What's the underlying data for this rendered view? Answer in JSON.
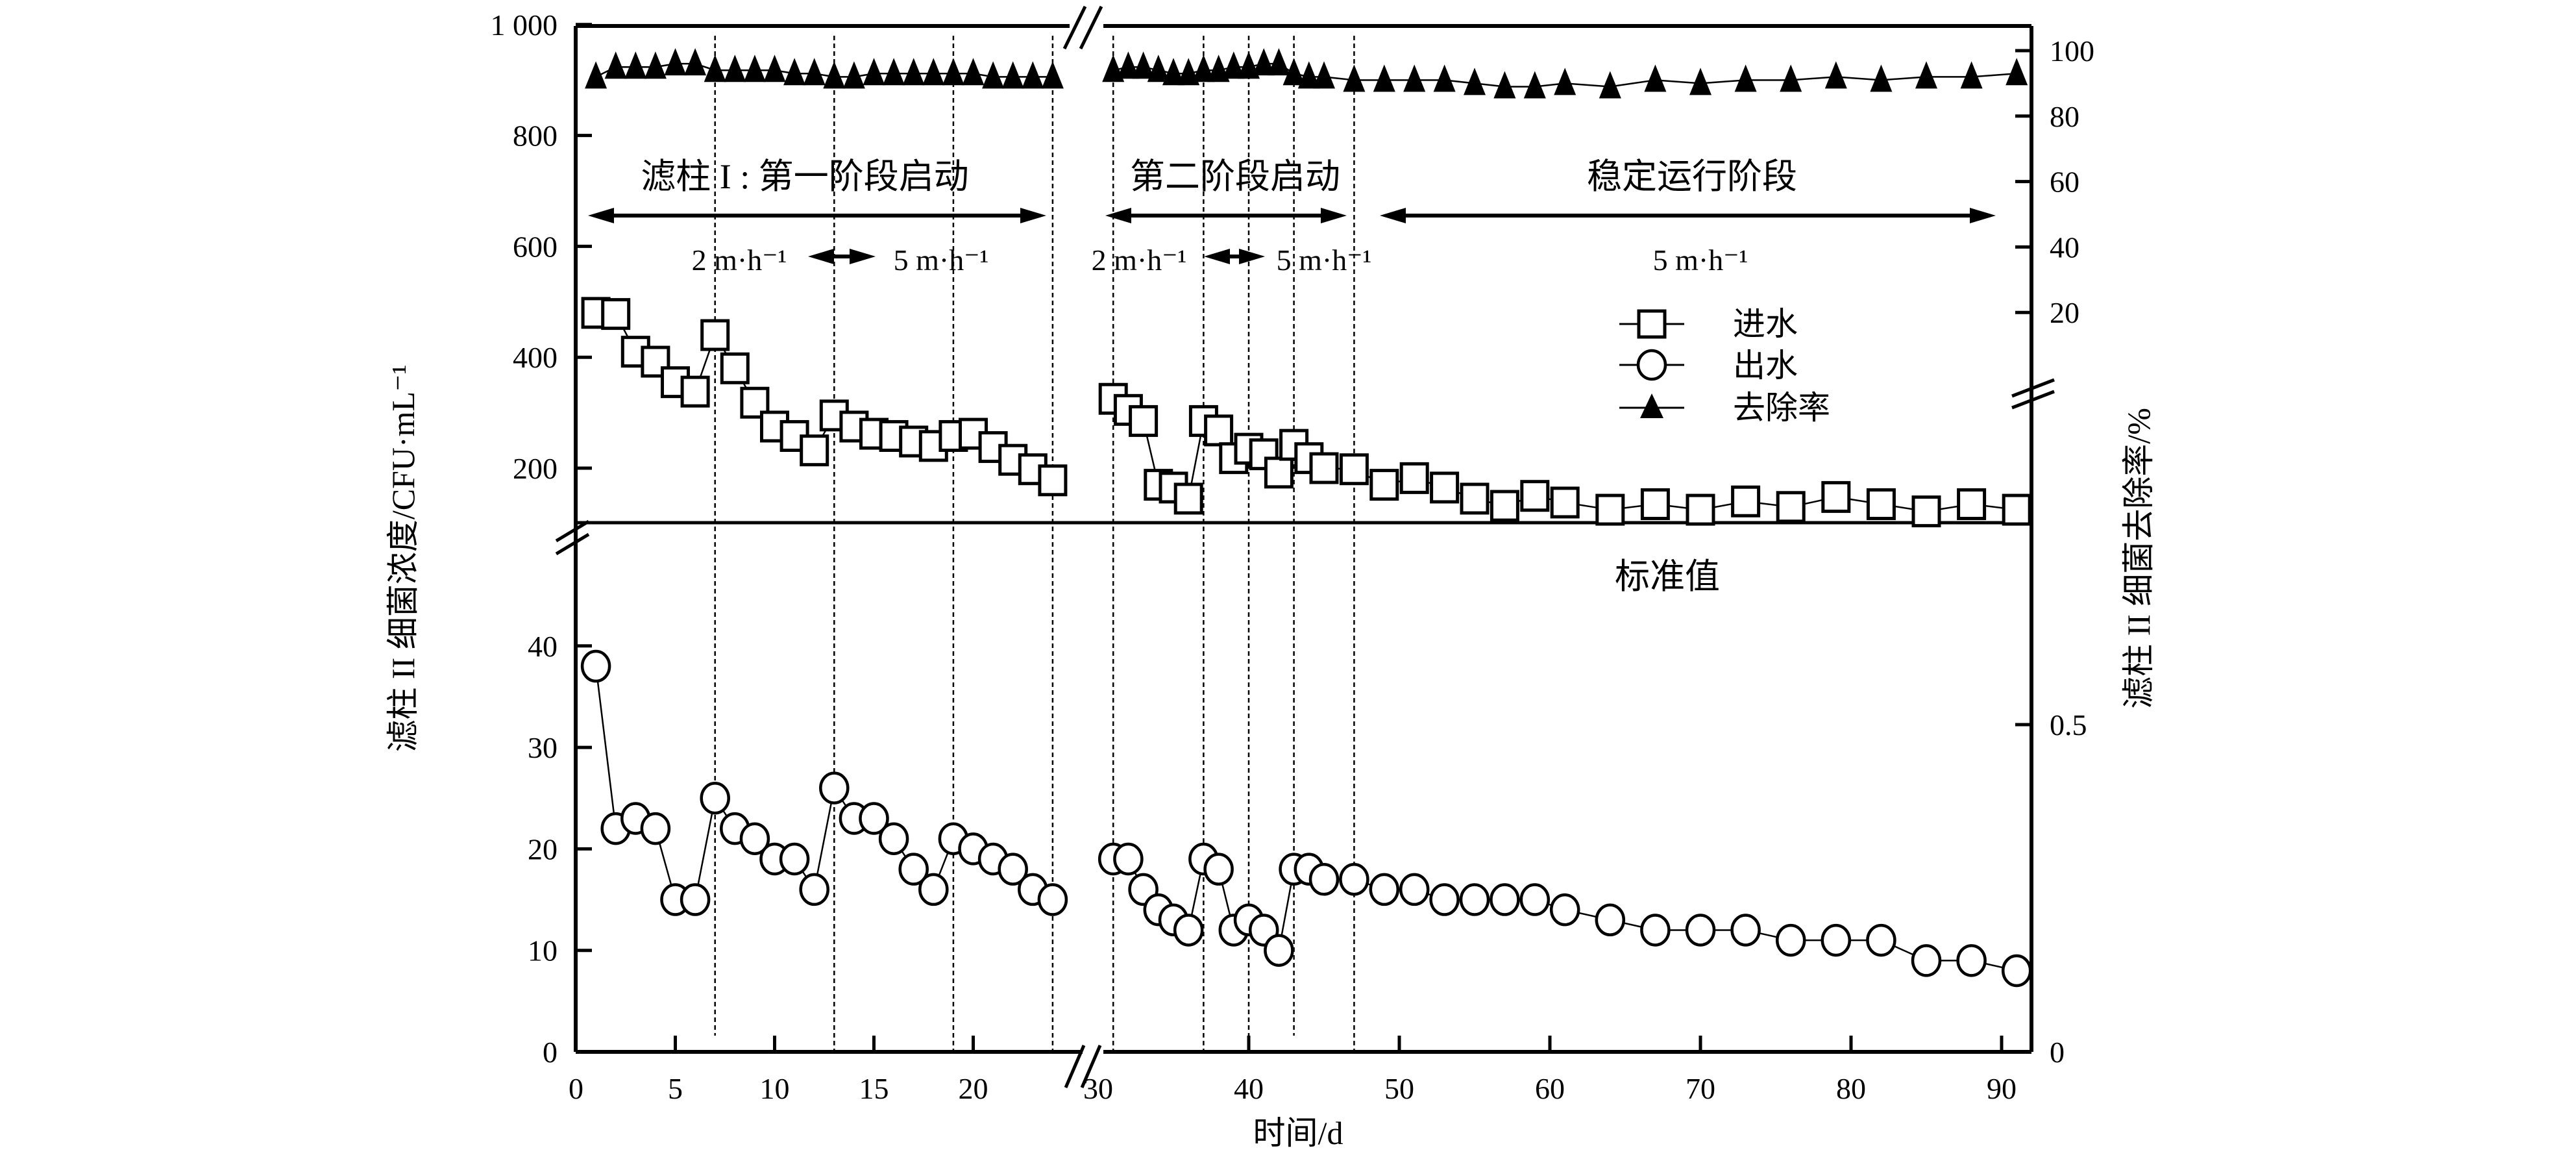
{
  "chart_data": {
    "type": "scatter",
    "xlabel": "时间/d",
    "ylabel_left": "滤柱 II 细菌浓度/CFU·mL⁻¹",
    "ylabel_right": "滤柱 II 细菌去除率/%",
    "x_axis": {
      "broken": true,
      "segments": [
        [
          0,
          26
        ],
        [
          29,
          92
        ]
      ],
      "tick_values": [
        0,
        5,
        10,
        15,
        20,
        30,
        40,
        50,
        60,
        70,
        80,
        90
      ],
      "tick_labels": [
        "0",
        "5",
        "10",
        "15",
        "20",
        "30",
        "40",
        "50",
        "60",
        "70",
        "80",
        "90"
      ]
    },
    "y_left": {
      "broken": true,
      "lower_range": [
        0,
        52
      ],
      "upper_range": [
        102,
        1000
      ],
      "lower_ticks": [
        0,
        10,
        20,
        30,
        40
      ],
      "lower_tick_labels": [
        "0",
        "10",
        "20",
        "30",
        "40"
      ],
      "upper_ticks": [
        200,
        400,
        600,
        800,
        1000
      ],
      "upper_tick_labels": [
        "200",
        "400",
        "600",
        "800",
        "1 000"
      ]
    },
    "y_right": {
      "broken": true,
      "upper_ticks": [
        20,
        40,
        60,
        80,
        100
      ],
      "upper_tick_labels": [
        "20",
        "40",
        "60",
        "80",
        "100"
      ],
      "lower_ticks": [
        0,
        0.5
      ],
      "lower_tick_labels": [
        "0",
        "0.5"
      ]
    },
    "legend": {
      "placement": "center-right",
      "entries": [
        "进水",
        "出水",
        "去除率"
      ]
    },
    "grid": false,
    "x": [
      1,
      2,
      3,
      4,
      5,
      6,
      7,
      8,
      9,
      10,
      11,
      12,
      13,
      14,
      15,
      16,
      17,
      18,
      19,
      20,
      21,
      22,
      23,
      24,
      31,
      32,
      33,
      34,
      35,
      36,
      37,
      38,
      39,
      40,
      41,
      42,
      43,
      44,
      45,
      47,
      49,
      51,
      53,
      55,
      57,
      59,
      61,
      64,
      67,
      70,
      73,
      76,
      79,
      82,
      85,
      88,
      91
    ],
    "series": [
      {
        "name": "进水",
        "marker": "square",
        "axis": "left",
        "values": [
          480,
          478,
          410,
          392,
          355,
          338,
          440,
          380,
          318,
          275,
          258,
          232,
          295,
          275,
          262,
          258,
          248,
          240,
          258,
          262,
          238,
          215,
          198,
          178,
          325,
          305,
          285,
          170,
          165,
          145,
          285,
          268,
          218,
          235,
          225,
          192,
          242,
          218,
          200,
          198,
          170,
          182,
          165,
          145,
          132,
          150,
          138,
          125,
          135,
          125,
          140,
          130,
          148,
          135,
          122,
          135,
          125
        ]
      },
      {
        "name": "出水",
        "marker": "circle",
        "axis": "left",
        "values": [
          38,
          22,
          23,
          22,
          15,
          15,
          25,
          22,
          21,
          19,
          19,
          16,
          26,
          23,
          23,
          21,
          18,
          16,
          21,
          20,
          19,
          18,
          16,
          15,
          19,
          19,
          16,
          14,
          13,
          12,
          19,
          18,
          12,
          13,
          12,
          10,
          18,
          18,
          17,
          17,
          16,
          16,
          15,
          15,
          15,
          15,
          14,
          13,
          12,
          12,
          12,
          11,
          11,
          11,
          9,
          9,
          8
        ]
      },
      {
        "name": "去除率",
        "marker": "triangle",
        "axis": "right",
        "values": [
          92,
          95,
          95,
          95,
          96,
          96,
          94,
          94,
          94,
          94,
          93,
          93,
          92,
          92,
          93,
          93,
          93,
          93,
          93,
          93,
          92,
          92,
          92,
          92,
          94,
          95,
          95,
          94,
          93,
          93,
          94,
          94,
          95,
          95,
          96,
          96,
          93,
          92,
          92,
          91,
          91,
          91,
          91,
          90,
          89,
          89,
          90,
          89,
          91,
          90,
          91,
          91,
          92,
          91,
          92,
          92,
          93
        ]
      }
    ],
    "phase_lines_x": [
      7,
      13,
      19,
      24,
      31,
      37,
      40,
      43,
      47
    ],
    "annotations": {
      "phase1": "滤柱 I : 第一阶段启动",
      "phase2": "第二阶段启动",
      "phase3": "稳定运行阶段",
      "rate_p1_a": "2 m·h⁻¹",
      "rate_p1_b": "5 m·h⁻¹",
      "rate_p2_a": "2 m·h⁻¹",
      "rate_p2_b": "5 m·h⁻¹",
      "rate_p3": "5 m·h⁻¹",
      "standard": "标准值"
    }
  }
}
